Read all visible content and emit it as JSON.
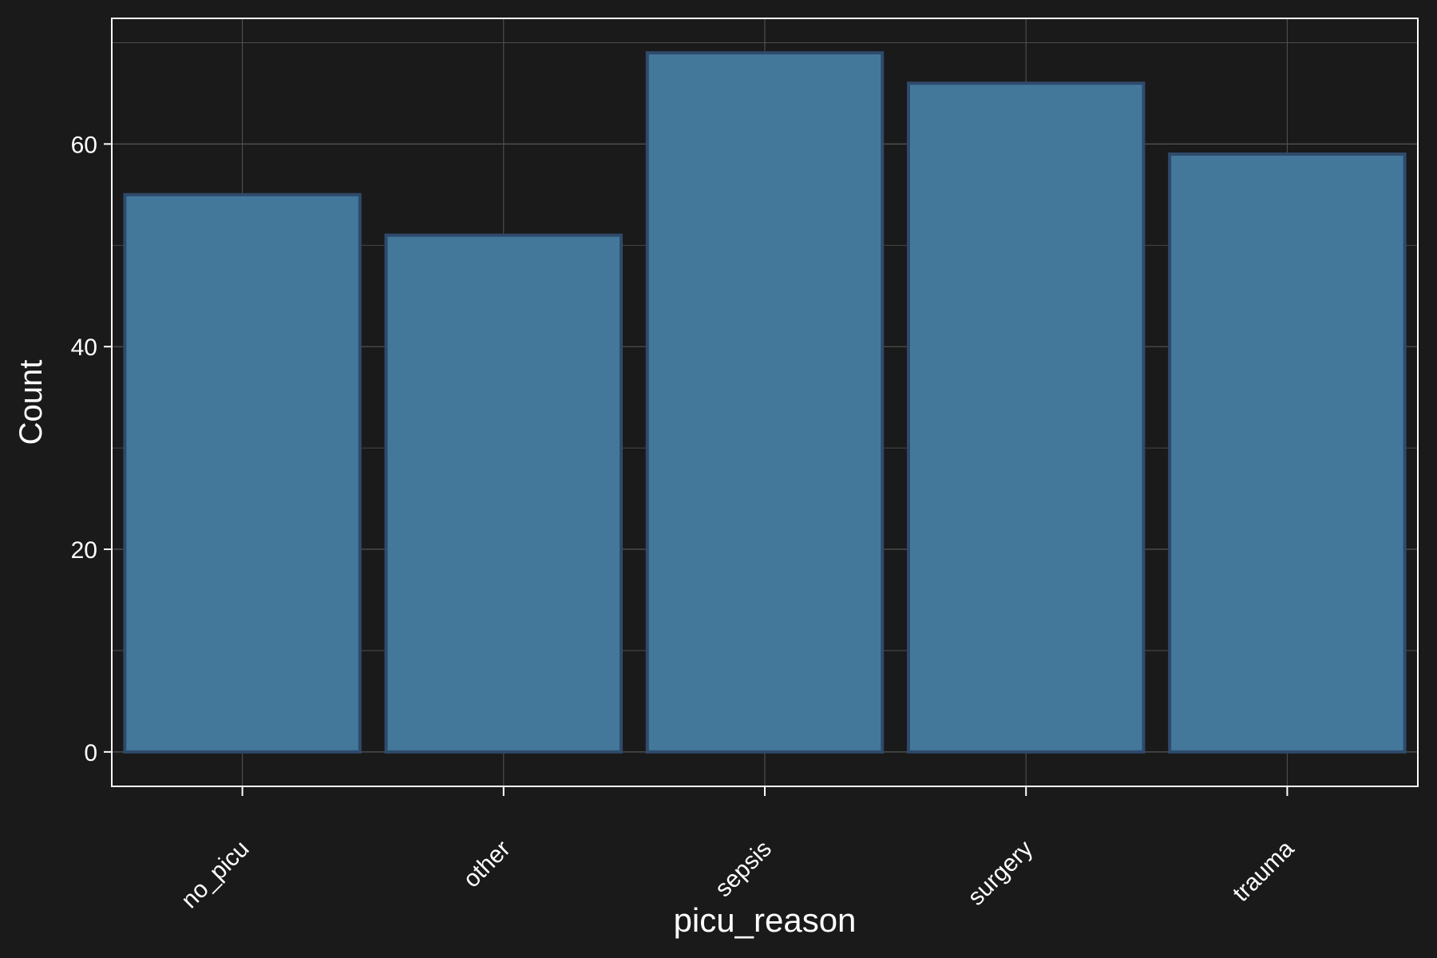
{
  "chart_data": {
    "type": "bar",
    "categories": [
      "no_picu",
      "other",
      "sepsis",
      "surgery",
      "trauma"
    ],
    "values": [
      55,
      51,
      69,
      66,
      59
    ],
    "xlabel": "picu_reason",
    "ylabel": "Count",
    "ylim": [
      -3.4,
      72.4
    ],
    "yticks": [
      0,
      20,
      40,
      60
    ],
    "grid": true,
    "legend": "none",
    "colors": {
      "background": "#1a1a1a",
      "bar_fill": "#43789b",
      "bar_edge": "#2f4a6b",
      "grid": "#555555",
      "axis": "#ffffff",
      "text": "#ffffff"
    }
  }
}
